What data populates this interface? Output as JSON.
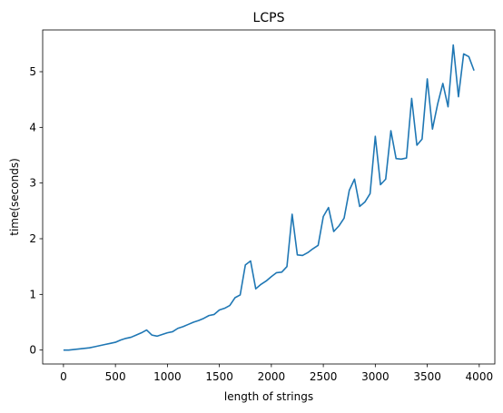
{
  "chart_data": {
    "type": "line",
    "title": "LCPS",
    "xlabel": "length of strings",
    "ylabel": "time(seconds)",
    "xlim": [
      -200,
      4150
    ],
    "ylim": [
      -0.25,
      5.75
    ],
    "xticks": [
      0,
      500,
      1000,
      1500,
      2000,
      2500,
      3000,
      3500,
      4000
    ],
    "yticks": [
      0,
      1,
      2,
      3,
      4,
      5
    ],
    "grid": false,
    "color": "#1f77b4",
    "series": [
      {
        "x": [
          0,
          50,
          100,
          150,
          200,
          250,
          300,
          350,
          400,
          450,
          500,
          550,
          600,
          650,
          700,
          750,
          800,
          850,
          900,
          950,
          1000,
          1050,
          1100,
          1150,
          1200,
          1250,
          1300,
          1350,
          1400,
          1450,
          1500,
          1550,
          1600,
          1650,
          1700,
          1750,
          1800,
          1850,
          1900,
          1950,
          2000,
          2050,
          2100,
          2150,
          2200,
          2250,
          2300,
          2350,
          2400,
          2450,
          2500,
          2550,
          2600,
          2650,
          2700,
          2750,
          2800,
          2850,
          2900,
          2950,
          3000,
          3050,
          3100,
          3150,
          3200,
          3250,
          3300,
          3350,
          3400,
          3450,
          3500,
          3550,
          3600,
          3650,
          3700,
          3750,
          3800,
          3850,
          3900,
          3950
        ],
        "y": [
          0.0,
          0.0,
          0.01,
          0.02,
          0.03,
          0.04,
          0.06,
          0.08,
          0.1,
          0.12,
          0.14,
          0.18,
          0.21,
          0.23,
          0.27,
          0.31,
          0.36,
          0.27,
          0.25,
          0.28,
          0.31,
          0.33,
          0.39,
          0.42,
          0.46,
          0.5,
          0.53,
          0.57,
          0.62,
          0.64,
          0.72,
          0.75,
          0.8,
          0.94,
          0.99,
          1.53,
          1.6,
          1.1,
          1.18,
          1.24,
          1.32,
          1.39,
          1.4,
          1.5,
          2.44,
          1.71,
          1.7,
          1.75,
          1.82,
          1.88,
          2.4,
          2.56,
          2.13,
          2.23,
          2.37,
          2.87,
          3.07,
          2.58,
          2.66,
          2.81,
          3.84,
          2.97,
          3.07,
          3.94,
          3.44,
          3.43,
          3.45,
          4.52,
          3.68,
          3.79,
          4.87,
          3.97,
          4.42,
          4.79,
          4.37,
          5.48,
          4.55,
          5.32,
          5.27,
          5.02
        ]
      }
    ]
  }
}
